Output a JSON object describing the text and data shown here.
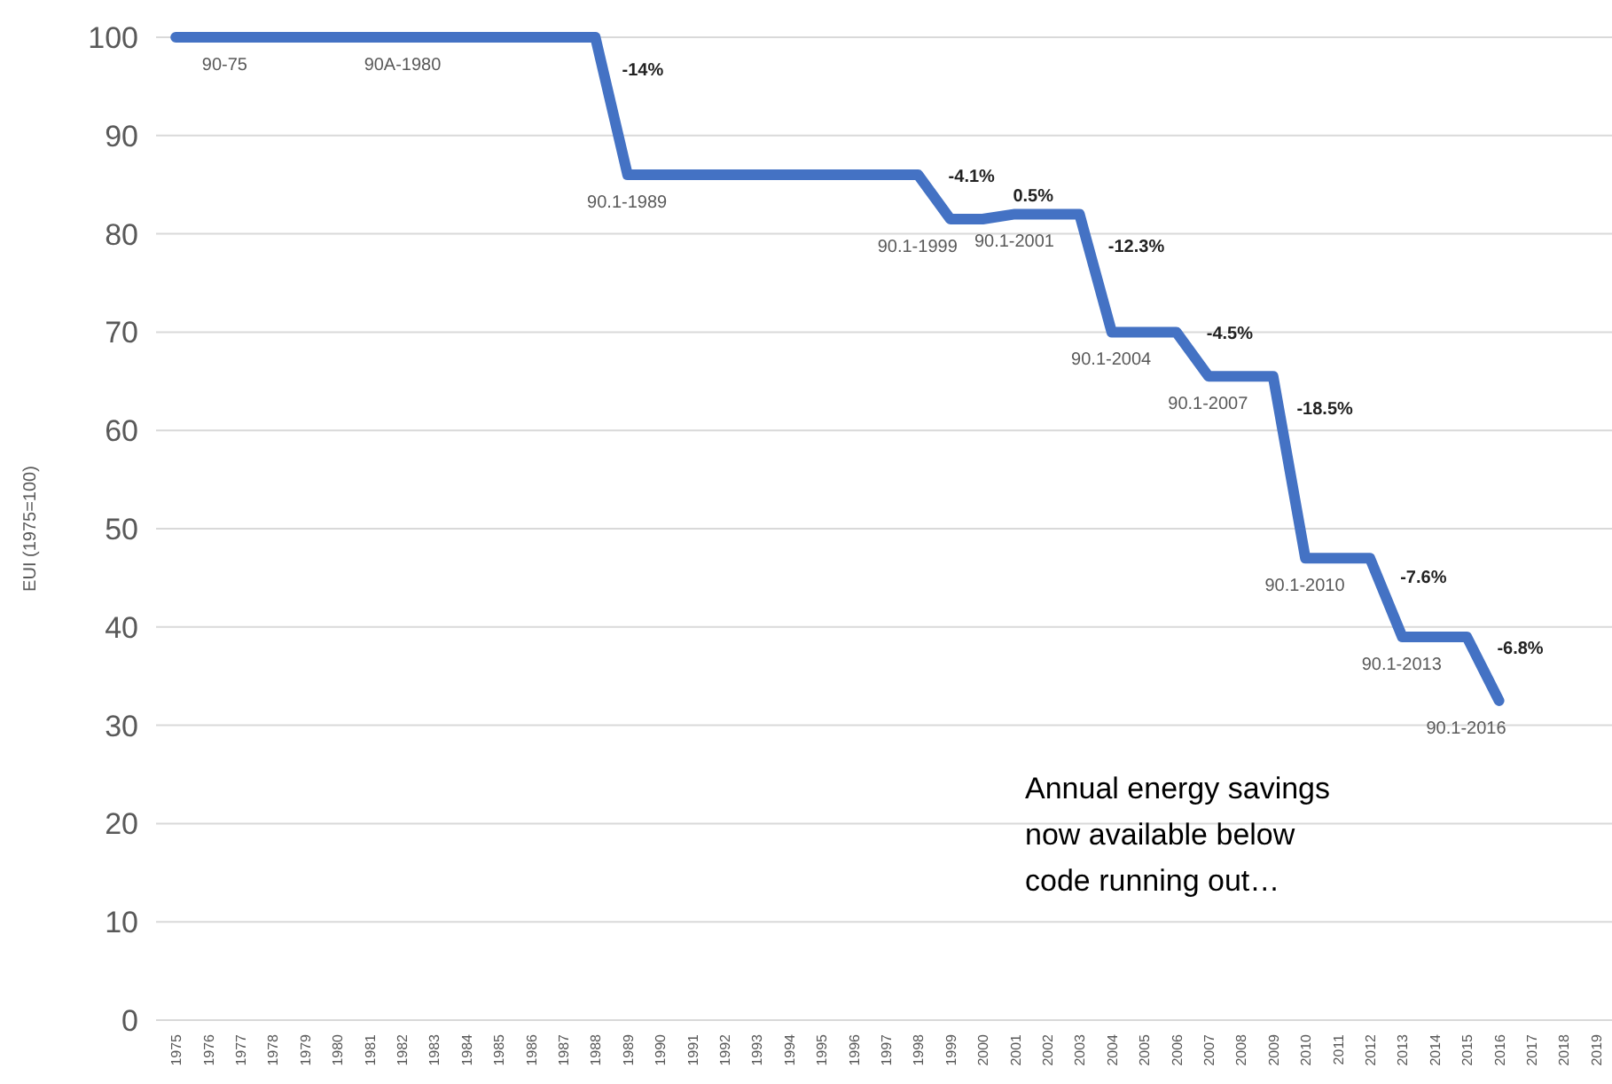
{
  "chart_data": {
    "type": "line",
    "ylabel": "EUI (1975=100)",
    "categories": [
      "1975",
      "1976",
      "1977",
      "1978",
      "1979",
      "1980",
      "1981",
      "1982",
      "1983",
      "1984",
      "1985",
      "1986",
      "1987",
      "1988",
      "1989",
      "1990",
      "1991",
      "1992",
      "1993",
      "1994",
      "1995",
      "1996",
      "1997",
      "1998",
      "1999",
      "2000",
      "2001",
      "2002",
      "2003",
      "2004",
      "2005",
      "2006",
      "2007",
      "2008",
      "2009",
      "2010",
      "2011",
      "2012",
      "2013",
      "2014",
      "2015",
      "2016",
      "2017",
      "2018",
      "2019"
    ],
    "series": [
      {
        "color": "#4472c4",
        "values": [
          100,
          100,
          100,
          100,
          100,
          100,
          100,
          100,
          100,
          100,
          100,
          100,
          100,
          100,
          86,
          86,
          86,
          86,
          86,
          86,
          86,
          86,
          86,
          86,
          81.5,
          81.5,
          82,
          82,
          82,
          70,
          70,
          70,
          65.5,
          65.5,
          65.5,
          47,
          47,
          47,
          39,
          39,
          39,
          32.5,
          null,
          null,
          null
        ]
      }
    ],
    "ylim": [
      0,
      100
    ],
    "yticks": [
      0,
      10,
      20,
      30,
      40,
      50,
      60,
      70,
      80,
      90,
      100
    ],
    "grid": "y",
    "line_style": "solid",
    "annotations": [
      {
        "text": "90-75",
        "x": "1977",
        "y": 100
      },
      {
        "text": "90A-1980",
        "x": "1983",
        "y": 100
      },
      {
        "text": "-14%",
        "x": "1988",
        "y": 100
      },
      {
        "text": "90.1-1989",
        "x": "1990",
        "y": 86
      },
      {
        "text": "-4.1%",
        "x": "1998",
        "y": 86
      },
      {
        "text": "0.5%",
        "x": "2000",
        "y": 81.5
      },
      {
        "text": "90.1-1999",
        "x": "1999",
        "y": 81.5
      },
      {
        "text": "90.1-2001",
        "x": "2002",
        "y": 82
      },
      {
        "text": "-12.3%",
        "x": "2003",
        "y": 82
      },
      {
        "text": "90.1-2004",
        "x": "2005",
        "y": 70
      },
      {
        "text": "-4.5%",
        "x": "2006",
        "y": 70
      },
      {
        "text": "90.1-2007",
        "x": "2008",
        "y": 65.5
      },
      {
        "text": "-18.5%",
        "x": "2009",
        "y": 65.5
      },
      {
        "text": "90.1-2010",
        "x": "2011",
        "y": 47
      },
      {
        "text": "-7.6%",
        "x": "2012",
        "y": 47
      },
      {
        "text": "90.1-2013",
        "x": "2014",
        "y": 39
      },
      {
        "text": "-6.8%",
        "x": "2015",
        "y": 39
      },
      {
        "text": "90.1-2016",
        "x": "2016",
        "y": 32.5
      },
      "Annual energy savings now available below code running out…"
    ]
  }
}
